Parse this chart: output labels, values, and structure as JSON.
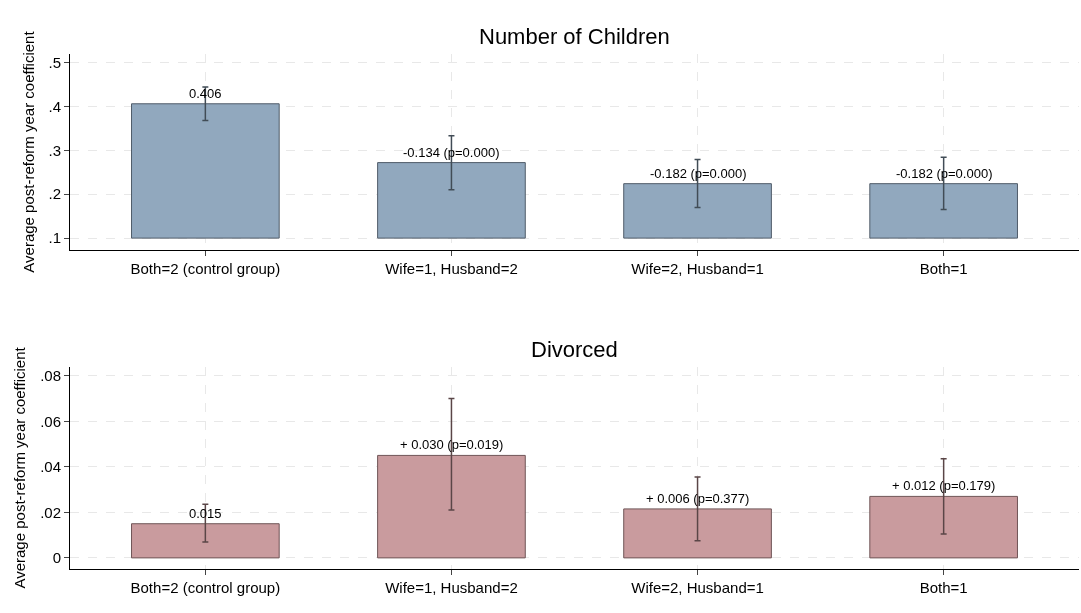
{
  "chart_data": [
    {
      "type": "bar",
      "title": "Number of Children",
      "ylabel": "Average post-reform year coefficient",
      "categories": [
        "Both=2 (control group)",
        "Wife=1, Husband=2",
        "Wife=2, Husband=1",
        "Both=1"
      ],
      "base": [
        0.1,
        0.1,
        0.1,
        0.1
      ],
      "values": [
        0.306,
        0.172,
        0.124,
        0.124
      ],
      "color": "#91a8be",
      "errors": [
        [
          0.368,
          0.444
        ],
        [
          0.21,
          0.333
        ],
        [
          0.17,
          0.279
        ],
        [
          0.165,
          0.284
        ]
      ],
      "value_labels": [
        "0.406",
        null,
        null,
        null
      ],
      "annotations": [
        {
          "text": "-0.134 (p=0.000)",
          "x": "Wife=1, Husband=2",
          "y": 0.272
        },
        {
          "text": "-0.182 (p=0.000)",
          "x": "Wife=2, Husband=1",
          "y": 0.224
        },
        {
          "text": "-0.182 (p=0.000)",
          "x": "Both=1",
          "y": 0.224
        }
      ],
      "ylim": [
        0.072,
        0.52
      ],
      "yticks": [
        {
          "value": 0.1,
          "label": ".1"
        },
        {
          "value": 0.2,
          "label": ".2"
        },
        {
          "value": 0.3,
          "label": ".3"
        },
        {
          "value": 0.4,
          "label": ".4"
        },
        {
          "value": 0.5,
          "label": ".5"
        }
      ],
      "grid": true
    },
    {
      "type": "bar",
      "title": "Divorced",
      "ylabel": "Average post-reform year coefficient",
      "categories": [
        "Both=2 (control group)",
        "Wife=1, Husband=2",
        "Wife=2, Husband=1",
        "Both=1"
      ],
      "values": [
        0.015,
        0.045,
        0.0215,
        0.027
      ],
      "color": "#c99b9e",
      "errors": [
        [
          0.007,
          0.0235
        ],
        [
          0.021,
          0.07
        ],
        [
          0.0075,
          0.0355
        ],
        [
          0.0105,
          0.0435
        ]
      ],
      "value_labels": [
        "0.015",
        null,
        null,
        null
      ],
      "annotations": [
        {
          "text": "+ 0.030 (p=0.019)",
          "x": "Wife=1, Husband=2",
          "y": 0.045
        },
        {
          "text": "+ 0.006 (p=0.377)",
          "x": "Wife=2, Husband=1",
          "y": 0.0215
        },
        {
          "text": "+ 0.012 (p=0.179)",
          "x": "Both=1",
          "y": 0.027
        }
      ],
      "ylim": [
        -0.005,
        0.084
      ],
      "yticks": [
        0,
        {
          "value": 0.02,
          "label": ".02"
        },
        {
          "value": 0.04,
          "label": ".04"
        },
        {
          "value": 0.06,
          "label": ".06"
        },
        {
          "value": 0.08,
          "label": ".08"
        }
      ],
      "grid": true
    }
  ]
}
